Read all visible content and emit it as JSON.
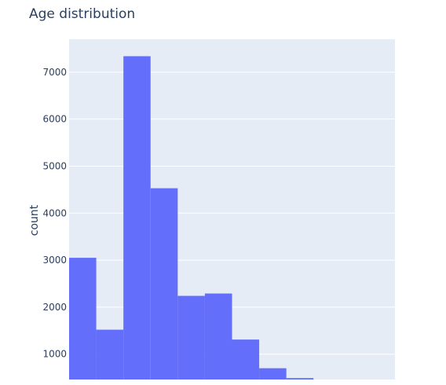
{
  "chart_data": {
    "type": "bar",
    "title": "Age distribution",
    "xlabel": "",
    "ylabel": "count",
    "ylim": [
      460,
      7700
    ],
    "yticks": [
      1000,
      2000,
      3000,
      4000,
      5000,
      6000,
      7000
    ],
    "ytick_labels": [
      "1000",
      "2000",
      "3000",
      "4000",
      "5000",
      "6000",
      "7000"
    ],
    "bins": 12,
    "values": [
      3050,
      1520,
      7340,
      4530,
      2240,
      2290,
      1310,
      700,
      490,
      0,
      0,
      0
    ],
    "colors": {
      "bar": "#636efa",
      "plot_bg": "#e5ecf6",
      "grid": "#ffffff",
      "text": "#2a3f5f"
    },
    "grid": true,
    "legend": "none"
  }
}
